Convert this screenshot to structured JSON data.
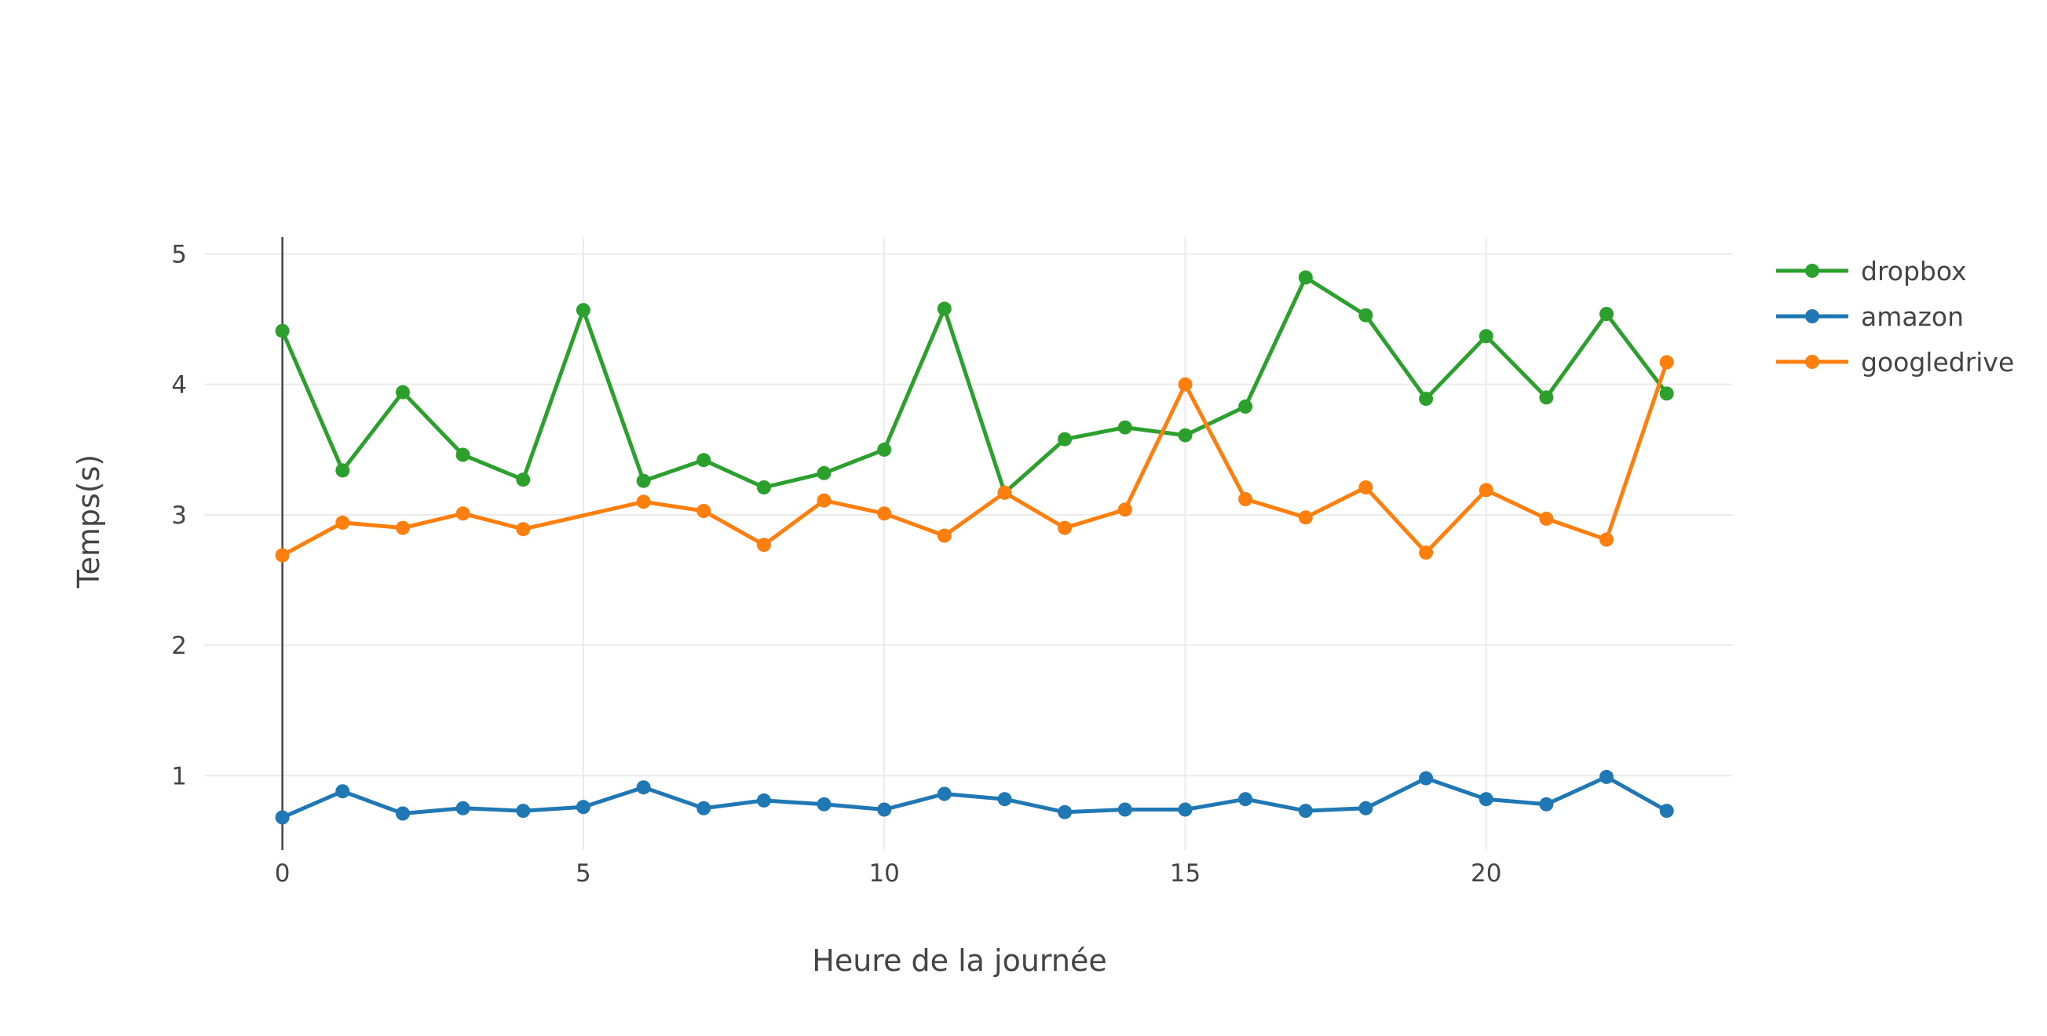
{
  "chart_data": {
    "type": "line",
    "title": "",
    "xlabel": "Heure de la journée",
    "ylabel": "Temps(s)",
    "x": [
      0,
      1,
      2,
      3,
      4,
      5,
      6,
      7,
      8,
      9,
      10,
      11,
      12,
      13,
      14,
      15,
      16,
      17,
      18,
      19,
      20,
      21,
      22,
      23
    ],
    "xlim": [
      -1.3,
      24.1
    ],
    "ylim": [
      0.43,
      5.13
    ],
    "x_ticks": [
      0,
      5,
      10,
      15,
      20
    ],
    "y_ticks": [
      1,
      2,
      3,
      4,
      5
    ],
    "grid": true,
    "legend_position": "top-right",
    "series": [
      {
        "name": "dropbox",
        "color": "#2ca02c",
        "x": [
          0,
          1,
          2,
          3,
          4,
          5,
          6,
          7,
          8,
          9,
          10,
          11,
          12,
          13,
          14,
          15,
          16,
          17,
          18,
          19,
          20,
          21,
          22,
          23
        ],
        "values": [
          4.41,
          3.34,
          3.94,
          3.46,
          3.27,
          4.57,
          3.26,
          3.42,
          3.21,
          3.32,
          3.5,
          4.58,
          3.17,
          3.58,
          3.67,
          3.61,
          3.83,
          4.82,
          4.53,
          3.89,
          4.37,
          3.9,
          4.54,
          3.93
        ]
      },
      {
        "name": "amazon",
        "color": "#1f77b4",
        "x": [
          0,
          1,
          2,
          3,
          4,
          5,
          6,
          7,
          8,
          9,
          10,
          11,
          12,
          13,
          14,
          15,
          16,
          17,
          18,
          19,
          20,
          21,
          22,
          23
        ],
        "values": [
          0.68,
          0.88,
          0.71,
          0.75,
          0.73,
          0.76,
          0.91,
          0.75,
          0.81,
          0.78,
          0.74,
          0.86,
          0.82,
          0.72,
          0.74,
          0.74,
          0.82,
          0.73,
          0.75,
          0.98,
          0.82,
          0.78,
          0.99,
          0.73
        ]
      },
      {
        "name": "googledrive",
        "color": "#ff7f0e",
        "x": [
          0,
          1,
          2,
          3,
          4,
          6,
          7,
          8,
          9,
          10,
          11,
          12,
          13,
          14,
          15,
          16,
          17,
          18,
          19,
          20,
          21,
          22,
          23
        ],
        "values": [
          2.69,
          2.94,
          2.9,
          3.01,
          2.89,
          3.1,
          3.03,
          2.77,
          3.11,
          3.01,
          2.84,
          3.17,
          2.9,
          3.04,
          4.0,
          3.12,
          2.98,
          3.21,
          2.71,
          3.19,
          2.97,
          2.81,
          4.17
        ]
      }
    ]
  }
}
